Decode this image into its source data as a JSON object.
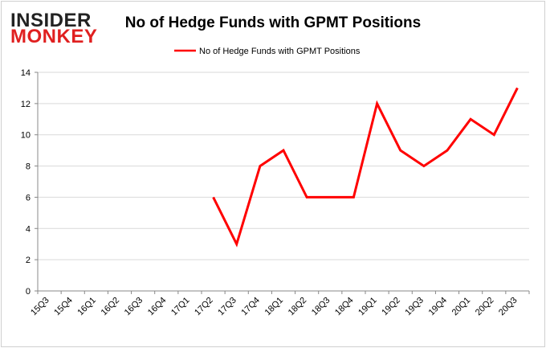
{
  "logo": {
    "line1": "INSIDER",
    "line2": "MONKEY"
  },
  "colors": {
    "series": "#ff0000",
    "grid": "#d9d9d9",
    "border": "#d0d0d0",
    "logo_dark": "#222222",
    "logo_red": "#e02020"
  },
  "chart_data": {
    "type": "line",
    "title": "No of Hedge Funds with GPMT Positions",
    "xlabel": "",
    "ylabel": "",
    "categories": [
      "15Q3",
      "15Q4",
      "16Q1",
      "16Q2",
      "16Q3",
      "16Q4",
      "17Q1",
      "17Q2",
      "17Q3",
      "17Q4",
      "18Q1",
      "18Q2",
      "18Q3",
      "18Q4",
      "19Q1",
      "19Q2",
      "19Q3",
      "19Q4",
      "20Q1",
      "20Q2",
      "20Q3"
    ],
    "series": [
      {
        "name": "No of Hedge Funds with GPMT Positions",
        "values": [
          null,
          null,
          null,
          null,
          null,
          null,
          null,
          6,
          3,
          8,
          9,
          6,
          6,
          6,
          12,
          9,
          8,
          9,
          11,
          10,
          13
        ]
      }
    ],
    "ylim": [
      0,
      14
    ],
    "yticks": [
      0,
      2,
      4,
      6,
      8,
      10,
      12,
      14
    ],
    "grid": true,
    "legend": "top-center"
  }
}
